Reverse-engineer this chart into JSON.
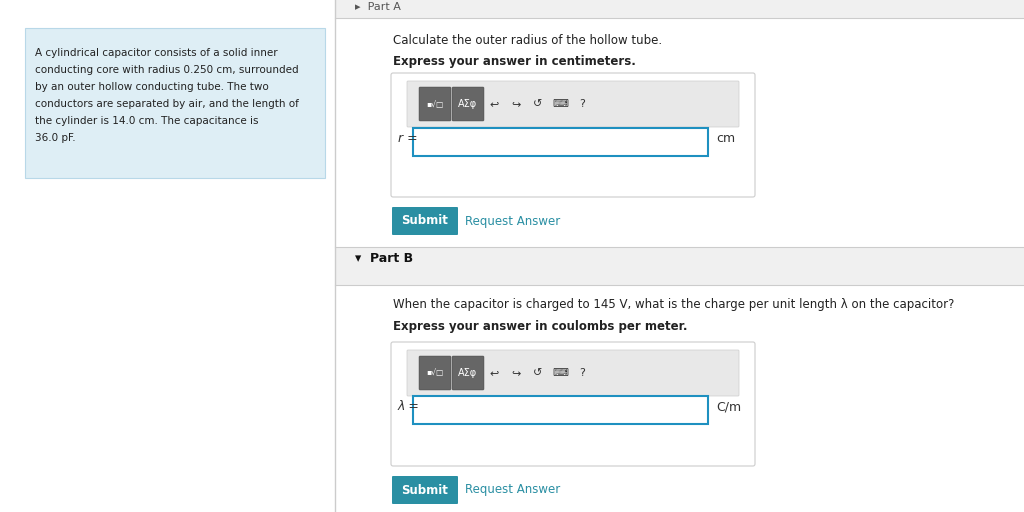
{
  "bg_color": "#ffffff",
  "left_panel_bg": "#deeef5",
  "left_panel_border": "#b8d8e8",
  "left_text_line1": "A cylindrical capacitor consists of a solid inner",
  "left_text_line2": "conducting core with radius 0.250 cm, surrounded",
  "left_text_line3": "by an outer hollow conducting tube. The two",
  "left_text_line4": "conductors are separated by air, and the length of",
  "left_text_line5": "the cylinder is 14.0 cm. The capacitance is",
  "left_text_line6": "36.0 pF.",
  "part_a_top_label": "▸  Part A",
  "part_a_instruction": "Calculate the outer radius of the hollow tube.",
  "part_a_bold": "Express your answer in centimeters.",
  "part_a_label": "r =",
  "part_a_unit": "cm",
  "part_b_title": "▾  Part B",
  "part_b_instruction": "When the capacitor is charged to 145 V, what is the charge per unit length λ on the capacitor?",
  "part_b_bold": "Express your answer in coulombs per meter.",
  "part_b_label": "λ =",
  "part_b_unit": "C/m",
  "submit_bg": "#2a8fa3",
  "submit_fg": "#ffffff",
  "link_color": "#2a8fa3",
  "toolbar_bg": "#e8e8e8",
  "toolbar_border": "#cccccc",
  "input_border": "#1e90c0",
  "input_bg": "#ffffff",
  "panel_bg": "#ffffff",
  "panel_border": "#cccccc",
  "partb_band_bg": "#f0f0f0",
  "divider_color": "#cccccc",
  "top_band_bg": "#f0f0f0"
}
